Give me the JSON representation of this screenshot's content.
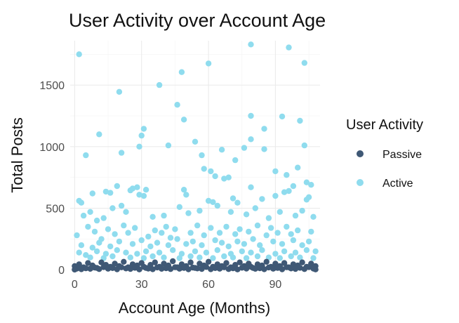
{
  "chart_data": {
    "type": "scatter",
    "title": "User Activity over Account Age",
    "xlabel": "Account Age (Months)",
    "ylabel": "Total Posts",
    "xlim": [
      -2,
      110
    ],
    "ylim": [
      -10,
      1860
    ],
    "x_ticks": [
      0,
      30,
      60,
      90
    ],
    "y_ticks": [
      0,
      500,
      1000,
      1500
    ],
    "grid": true,
    "legend": {
      "title": "User Activity",
      "position": "right",
      "entries": [
        {
          "label": "Passive",
          "color": "#3f5875"
        },
        {
          "label": "Active",
          "color": "#8fdcee"
        }
      ]
    },
    "series": [
      {
        "name": "Active",
        "color": "#8fdcee",
        "points": [
          [
            2,
            1750
          ],
          [
            20,
            1445
          ],
          [
            38,
            1500
          ],
          [
            48,
            1605
          ],
          [
            60,
            1675
          ],
          [
            79,
            1830
          ],
          [
            96,
            1805
          ],
          [
            103,
            1680
          ],
          [
            46,
            1340
          ],
          [
            11,
            1100
          ],
          [
            31,
            1145
          ],
          [
            30,
            1090
          ],
          [
            29,
            1000
          ],
          [
            49,
            1220
          ],
          [
            42,
            1010
          ],
          [
            54,
            1040
          ],
          [
            79,
            1250
          ],
          [
            93,
            1245
          ],
          [
            85,
            1145
          ],
          [
            101,
            1210
          ],
          [
            79,
            1060
          ],
          [
            85,
            980
          ],
          [
            76,
            990
          ],
          [
            103,
            1010
          ],
          [
            5,
            930
          ],
          [
            21,
            950
          ],
          [
            57,
            930
          ],
          [
            66,
            975
          ],
          [
            72,
            890
          ],
          [
            100,
            830
          ],
          [
            90,
            800
          ],
          [
            95,
            770
          ],
          [
            58,
            820
          ],
          [
            61,
            800
          ],
          [
            63,
            760
          ],
          [
            67,
            740
          ],
          [
            69,
            750
          ],
          [
            104,
            710
          ],
          [
            106,
            690
          ],
          [
            2,
            560
          ],
          [
            3,
            545
          ],
          [
            8,
            620
          ],
          [
            14,
            635
          ],
          [
            16,
            625
          ],
          [
            19,
            680
          ],
          [
            25,
            645
          ],
          [
            26,
            660
          ],
          [
            28,
            670
          ],
          [
            29,
            610
          ],
          [
            31,
            600
          ],
          [
            32,
            650
          ],
          [
            49,
            650
          ],
          [
            50,
            610
          ],
          [
            60,
            560
          ],
          [
            62,
            550
          ],
          [
            71,
            580
          ],
          [
            73,
            545
          ],
          [
            79,
            670
          ],
          [
            84,
            575
          ],
          [
            90,
            600
          ],
          [
            94,
            630
          ],
          [
            96,
            640
          ],
          [
            98,
            680
          ],
          [
            104,
            570
          ],
          [
            105,
            590
          ],
          [
            4,
            440
          ],
          [
            7,
            470
          ],
          [
            10,
            400
          ],
          [
            13,
            420
          ],
          [
            17,
            500
          ],
          [
            21,
            520
          ],
          [
            23,
            470
          ],
          [
            35,
            430
          ],
          [
            40,
            440
          ],
          [
            47,
            510
          ],
          [
            51,
            460
          ],
          [
            56,
            480
          ],
          [
            64,
            520
          ],
          [
            70,
            470
          ],
          [
            77,
            450
          ],
          [
            81,
            500
          ],
          [
            87,
            420
          ],
          [
            92,
            470
          ],
          [
            99,
            440
          ],
          [
            102,
            480
          ],
          [
            107,
            430
          ],
          [
            1,
            280
          ],
          [
            6,
            350
          ],
          [
            9,
            310
          ],
          [
            12,
            250
          ],
          [
            15,
            330
          ],
          [
            18,
            290
          ],
          [
            22,
            360
          ],
          [
            24,
            300
          ],
          [
            27,
            340
          ],
          [
            33,
            270
          ],
          [
            36,
            320
          ],
          [
            39,
            300
          ],
          [
            41,
            350
          ],
          [
            43,
            260
          ],
          [
            45,
            330
          ],
          [
            52,
            300
          ],
          [
            55,
            360
          ],
          [
            58,
            280
          ],
          [
            61,
            340
          ],
          [
            65,
            300
          ],
          [
            68,
            350
          ],
          [
            72,
            290
          ],
          [
            74,
            330
          ],
          [
            78,
            310
          ],
          [
            82,
            360
          ],
          [
            86,
            280
          ],
          [
            88,
            340
          ],
          [
            91,
            300
          ],
          [
            95,
            350
          ],
          [
            97,
            290
          ],
          [
            100,
            320
          ],
          [
            106,
            310
          ],
          [
            3,
            200
          ],
          [
            8,
            180
          ],
          [
            11,
            220
          ],
          [
            16,
            190
          ],
          [
            20,
            230
          ],
          [
            26,
            210
          ],
          [
            30,
            240
          ],
          [
            34,
            190
          ],
          [
            37,
            220
          ],
          [
            42,
            200
          ],
          [
            46,
            250
          ],
          [
            50,
            210
          ],
          [
            53,
            230
          ],
          [
            57,
            200
          ],
          [
            63,
            240
          ],
          [
            66,
            220
          ],
          [
            69,
            190
          ],
          [
            73,
            230
          ],
          [
            76,
            210
          ],
          [
            80,
            250
          ],
          [
            83,
            200
          ],
          [
            89,
            230
          ],
          [
            93,
            210
          ],
          [
            98,
            240
          ],
          [
            102,
            200
          ],
          [
            105,
            230
          ],
          [
            2,
            140
          ],
          [
            5,
            120
          ],
          [
            10,
            150
          ],
          [
            14,
            130
          ],
          [
            19,
            160
          ],
          [
            23,
            140
          ],
          [
            28,
            130
          ],
          [
            32,
            150
          ],
          [
            38,
            140
          ],
          [
            44,
            160
          ],
          [
            48,
            130
          ],
          [
            54,
            150
          ],
          [
            59,
            140
          ],
          [
            64,
            160
          ],
          [
            70,
            130
          ],
          [
            75,
            150
          ],
          [
            79,
            140
          ],
          [
            84,
            160
          ],
          [
            90,
            130
          ],
          [
            94,
            150
          ],
          [
            99,
            140
          ],
          [
            104,
            160
          ],
          [
            108,
            150
          ],
          [
            7,
            100
          ],
          [
            13,
            95
          ],
          [
            17,
            110
          ],
          [
            25,
            100
          ],
          [
            31,
            95
          ],
          [
            35,
            110
          ],
          [
            40,
            100
          ],
          [
            47,
            95
          ],
          [
            52,
            110
          ],
          [
            56,
            100
          ],
          [
            62,
            95
          ],
          [
            67,
            110
          ],
          [
            71,
            100
          ],
          [
            77,
            95
          ],
          [
            82,
            110
          ],
          [
            87,
            100
          ],
          [
            92,
            95
          ],
          [
            97,
            110
          ],
          [
            101,
            100
          ],
          [
            107,
            95
          ]
        ]
      },
      {
        "name": "Passive",
        "color": "#3f5875",
        "points": [
          [
            0,
            30
          ],
          [
            2,
            45
          ],
          [
            4,
            20
          ],
          [
            6,
            55
          ],
          [
            8,
            35
          ],
          [
            10,
            15
          ],
          [
            12,
            60
          ],
          [
            14,
            40
          ],
          [
            16,
            25
          ],
          [
            18,
            50
          ],
          [
            20,
            30
          ],
          [
            22,
            65
          ],
          [
            24,
            20
          ],
          [
            26,
            45
          ],
          [
            28,
            35
          ],
          [
            30,
            55
          ],
          [
            32,
            15
          ],
          [
            34,
            40
          ],
          [
            36,
            60
          ],
          [
            38,
            25
          ],
          [
            40,
            50
          ],
          [
            42,
            35
          ],
          [
            44,
            70
          ],
          [
            46,
            20
          ],
          [
            48,
            45
          ],
          [
            50,
            30
          ],
          [
            52,
            60
          ],
          [
            54,
            15
          ],
          [
            56,
            50
          ],
          [
            58,
            35
          ],
          [
            60,
            65
          ],
          [
            62,
            25
          ],
          [
            64,
            45
          ],
          [
            66,
            30
          ],
          [
            68,
            55
          ],
          [
            70,
            20
          ],
          [
            72,
            40
          ],
          [
            74,
            60
          ],
          [
            76,
            30
          ],
          [
            78,
            50
          ],
          [
            80,
            15
          ],
          [
            82,
            45
          ],
          [
            84,
            35
          ],
          [
            86,
            65
          ],
          [
            88,
            25
          ],
          [
            90,
            50
          ],
          [
            92,
            30
          ],
          [
            94,
            55
          ],
          [
            96,
            20
          ],
          [
            98,
            45
          ],
          [
            100,
            35
          ],
          [
            102,
            60
          ],
          [
            104,
            25
          ],
          [
            106,
            50
          ],
          [
            108,
            30
          ],
          [
            1,
            10
          ],
          [
            3,
            5
          ],
          [
            5,
            12
          ],
          [
            7,
            8
          ],
          [
            9,
            18
          ],
          [
            11,
            6
          ],
          [
            13,
            22
          ],
          [
            15,
            9
          ],
          [
            17,
            14
          ],
          [
            19,
            4
          ],
          [
            21,
            20
          ],
          [
            23,
            11
          ],
          [
            25,
            7
          ],
          [
            27,
            16
          ],
          [
            29,
            3
          ],
          [
            31,
            24
          ],
          [
            33,
            10
          ],
          [
            35,
            5
          ],
          [
            37,
            19
          ],
          [
            39,
            8
          ],
          [
            41,
            13
          ],
          [
            43,
            6
          ],
          [
            45,
            21
          ],
          [
            47,
            9
          ],
          [
            49,
            15
          ],
          [
            51,
            4
          ],
          [
            53,
            18
          ],
          [
            55,
            11
          ],
          [
            57,
            7
          ],
          [
            59,
            23
          ],
          [
            61,
            5
          ],
          [
            63,
            14
          ],
          [
            65,
            9
          ],
          [
            67,
            20
          ],
          [
            69,
            6
          ],
          [
            71,
            12
          ],
          [
            73,
            3
          ],
          [
            75,
            17
          ],
          [
            77,
            10
          ],
          [
            79,
            25
          ],
          [
            81,
            8
          ],
          [
            83,
            13
          ],
          [
            85,
            5
          ],
          [
            87,
            19
          ],
          [
            89,
            9
          ],
          [
            91,
            15
          ],
          [
            93,
            4
          ],
          [
            95,
            21
          ],
          [
            97,
            11
          ],
          [
            99,
            7
          ],
          [
            101,
            16
          ],
          [
            103,
            6
          ],
          [
            105,
            22
          ],
          [
            107,
            10
          ],
          [
            0,
            2
          ],
          [
            108,
            3
          ]
        ]
      }
    ]
  }
}
